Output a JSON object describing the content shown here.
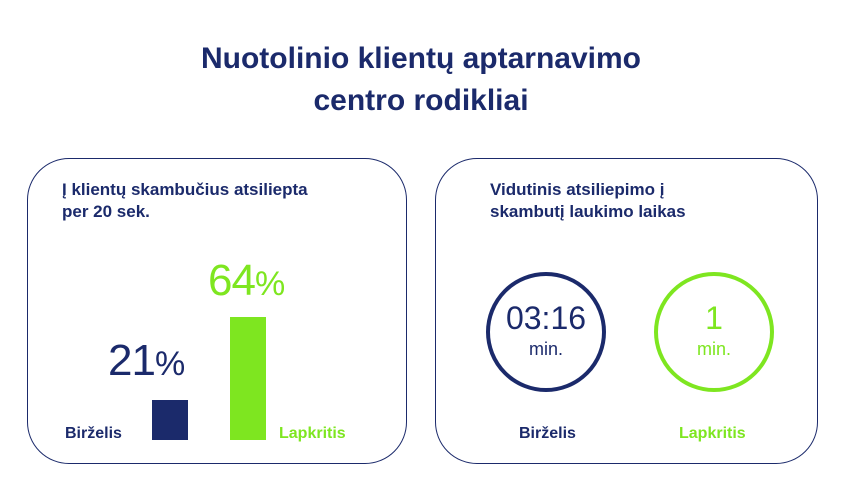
{
  "title_line1": "Nuotolinio klientų aptarnavimo",
  "title_line2": "centro rodikliai",
  "colors": {
    "navy": "#1b2a6b",
    "green": "#7ee620"
  },
  "chart_data": [
    {
      "type": "bar",
      "title_line1": "Į klientų skambučius atsiliepta",
      "title_line2": "per 20 sek.",
      "categories": [
        "Birželis",
        "Lapkritis"
      ],
      "values": [
        21,
        64
      ],
      "value_labels": [
        "21",
        "64"
      ],
      "unit": "%",
      "ylim": [
        0,
        64
      ]
    },
    {
      "type": "table",
      "title_line1": "Vidutinis atsiliepimo į",
      "title_line2": "skambutį laukimo laikas",
      "categories": [
        "Birželis",
        "Lapkritis"
      ],
      "values": [
        "03:16",
        "1"
      ],
      "unit": "min."
    }
  ]
}
